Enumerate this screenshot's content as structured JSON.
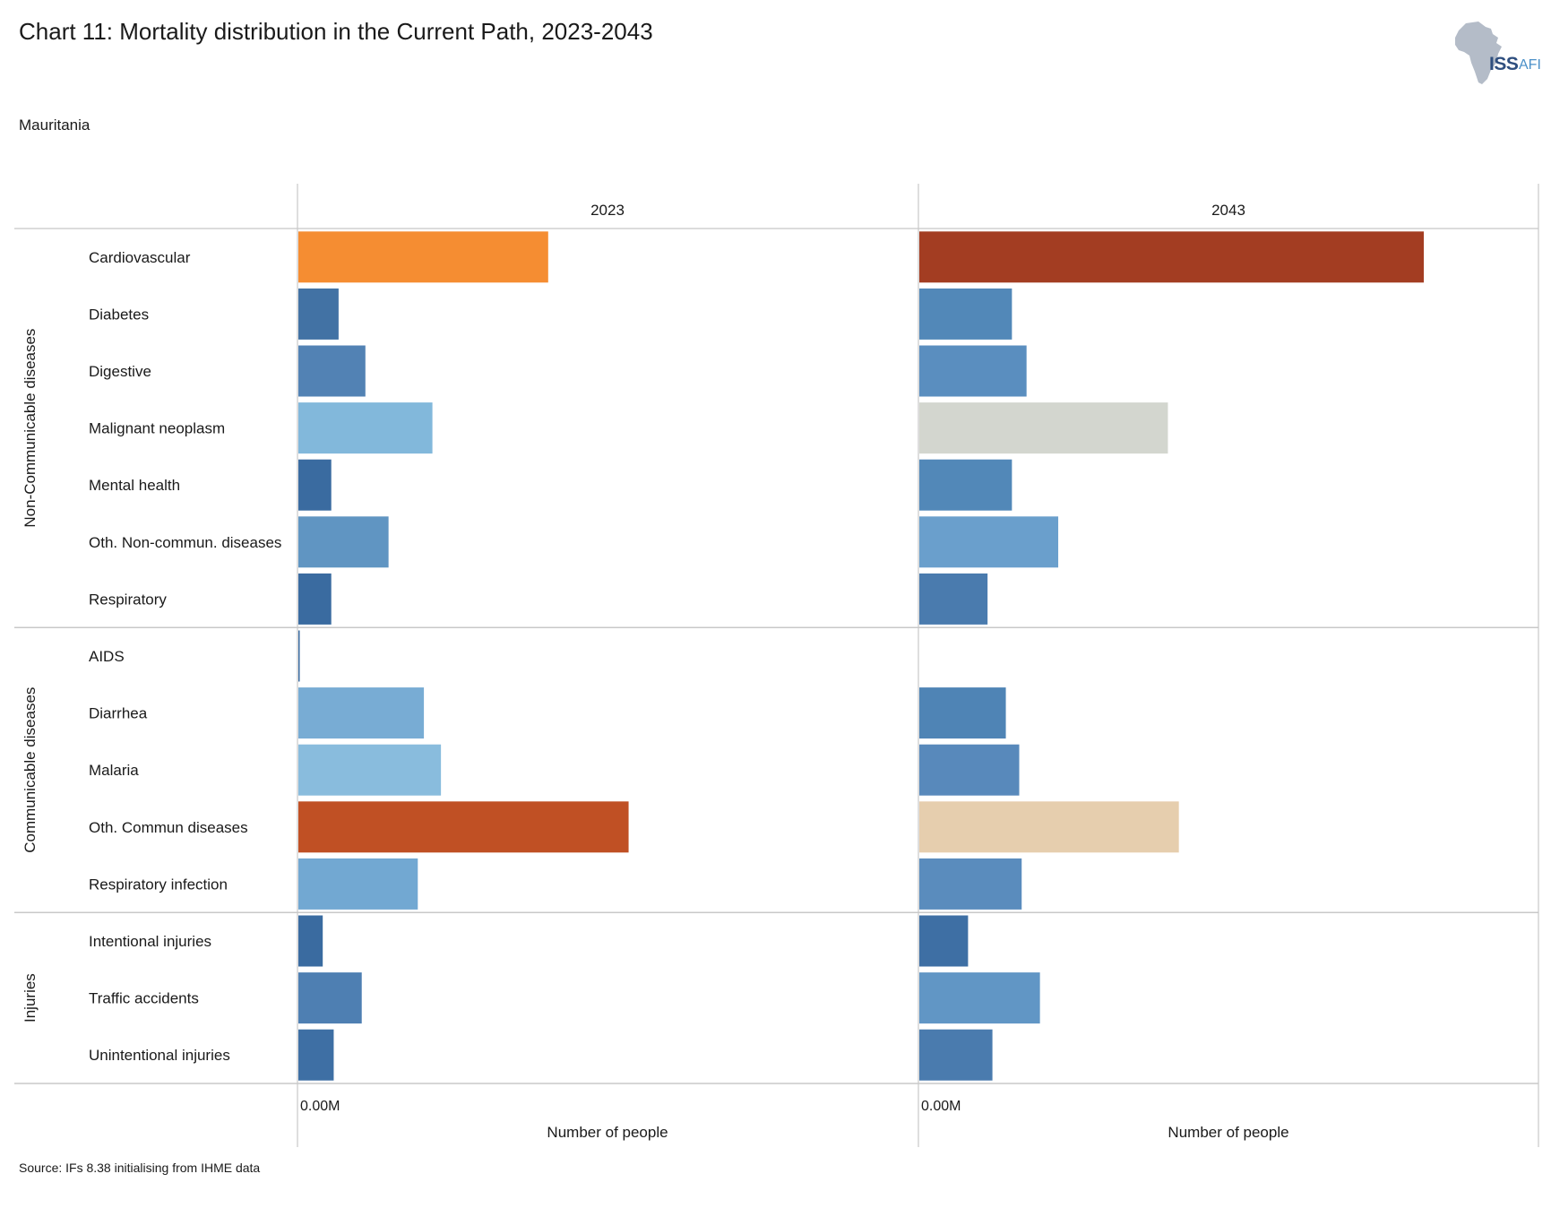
{
  "title": "Chart 11: Mortality distribution in the Current Path, 2023-2043",
  "subtitle": "Mauritania",
  "source": "Source: IFs 8.38 initialising from IHME data",
  "logo": {
    "primary": "ISS",
    "secondary": "AFI"
  },
  "chart_data": {
    "type": "bar",
    "orientation": "horizontal",
    "title": "Chart 11: Mortality distribution in the Current Path, 2023-2043",
    "subtitle": "Mauritania",
    "xlabel": "Number of people",
    "x_tick_label": "0.00M",
    "unit": "million people",
    "xlim": [
      0,
      0.005
    ],
    "panels": [
      "2023",
      "2043"
    ],
    "groups": [
      {
        "name": "Non-Communicable diseases",
        "categories": [
          "Cardiovascular",
          "Diabetes",
          "Digestive",
          "Malignant neoplasm",
          "Mental health",
          "Oth. Non-commun. diseases",
          "Respiratory"
        ]
      },
      {
        "name": "Communicable diseases",
        "categories": [
          "AIDS",
          "Diarrhea",
          "Malaria",
          "Oth. Commun diseases",
          "Respiratory infection"
        ]
      },
      {
        "name": "Injuries",
        "categories": [
          "Intentional injuries",
          "Traffic accidents",
          "Unintentional injuries"
        ]
      }
    ],
    "series": [
      {
        "name": "2023",
        "values": [
          0.00205,
          0.00033,
          0.00055,
          0.0011,
          0.00027,
          0.00074,
          0.00027,
          1e-05,
          0.00103,
          0.00117,
          0.00271,
          0.00098,
          0.0002,
          0.00052,
          0.00029
        ],
        "colors": [
          "#f58d32",
          "#4272a4",
          "#5282b4",
          "#82b8db",
          "#3a6ba0",
          "#6095c2",
          "#3a6ba0",
          "#3a6ba0",
          "#78acd4",
          "#89bcdd",
          "#c05024",
          "#72a8d2",
          "#3a6ba0",
          "#4e7fb2",
          "#3e6fa4"
        ]
      },
      {
        "name": "2043",
        "values": [
          0.00414,
          0.00076,
          0.00088,
          0.00204,
          0.00076,
          0.00114,
          0.00056,
          0,
          0.00071,
          0.00082,
          0.00213,
          0.00084,
          0.0004,
          0.00099,
          0.0006
        ],
        "colors": [
          "#a33d22",
          "#5288b8",
          "#5a8ebf",
          "#d3d6cf",
          "#5288b8",
          "#6a9fcc",
          "#4a7bae",
          "#4a7bae",
          "#4f84b5",
          "#5889bb",
          "#e6ceae",
          "#5a8cbd",
          "#3e6fa4",
          "#6196c5",
          "#4a7bae"
        ]
      }
    ]
  }
}
